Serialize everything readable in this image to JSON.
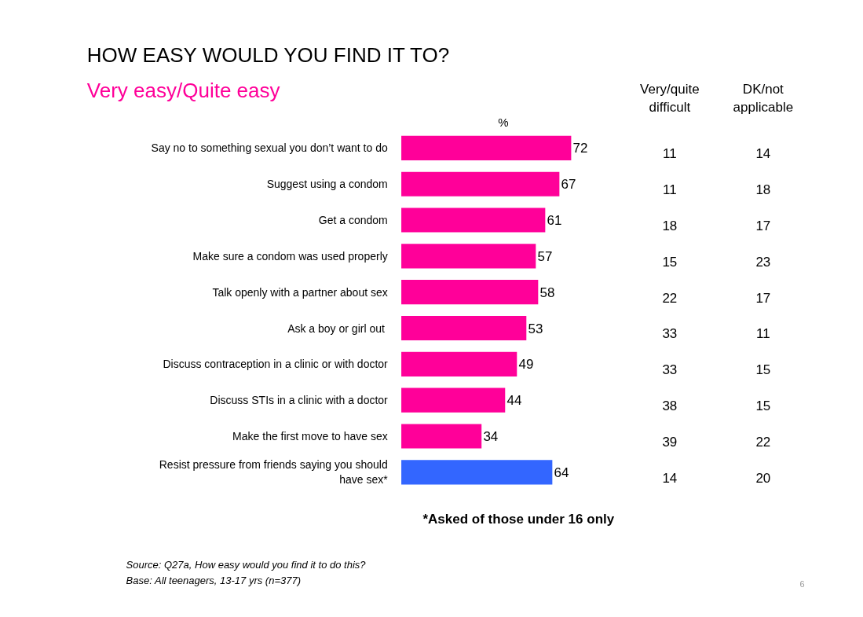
{
  "chart_data": [
    {
      "type": "bar",
      "orientation": "horizontal",
      "title": "HOW EASY WOULD YOU FIND IT TO?",
      "subtitle": "Very easy/Quite easy",
      "xlabel": "%",
      "categories": [
        "Say no to something sexual you don’t want to do",
        "Suggest using a condom",
        "Get a condom",
        "Make sure a condom was used properly",
        "Talk openly with a partner about sex",
        "Ask  a boy or girl out",
        "Discuss contraception in a clinic or with doctor",
        "Discuss STIs in a clinic with a doctor",
        "Make the first move to have sex",
        "Resist pressure from friends saying you should have sex*"
      ],
      "values": [
        72,
        67,
        61,
        57,
        58,
        53,
        49,
        44,
        34,
        64
      ],
      "colors": [
        "#ff0099",
        "#ff0099",
        "#ff0099",
        "#ff0099",
        "#ff0099",
        "#ff0099",
        "#ff0099",
        "#ff0099",
        "#ff0099",
        "#3366ff"
      ],
      "data_labels": true,
      "annotations": [
        "*Asked of those under 16 only",
        "Source:  Q27a, How easy would you find it to do this?",
        "Base:     All teenagers, 13-17 yrs (n=377)",
        "6"
      ]
    },
    {
      "type": "other",
      "annotations": [
        "Very/quite difficult",
        "DK/not applicable",
        "11",
        "14",
        "11",
        "18",
        "18",
        "17",
        "15",
        "23",
        "22",
        "17",
        "33",
        "11",
        "33",
        "15",
        "38",
        "15",
        "39",
        "22",
        "14",
        "20"
      ]
    }
  ]
}
